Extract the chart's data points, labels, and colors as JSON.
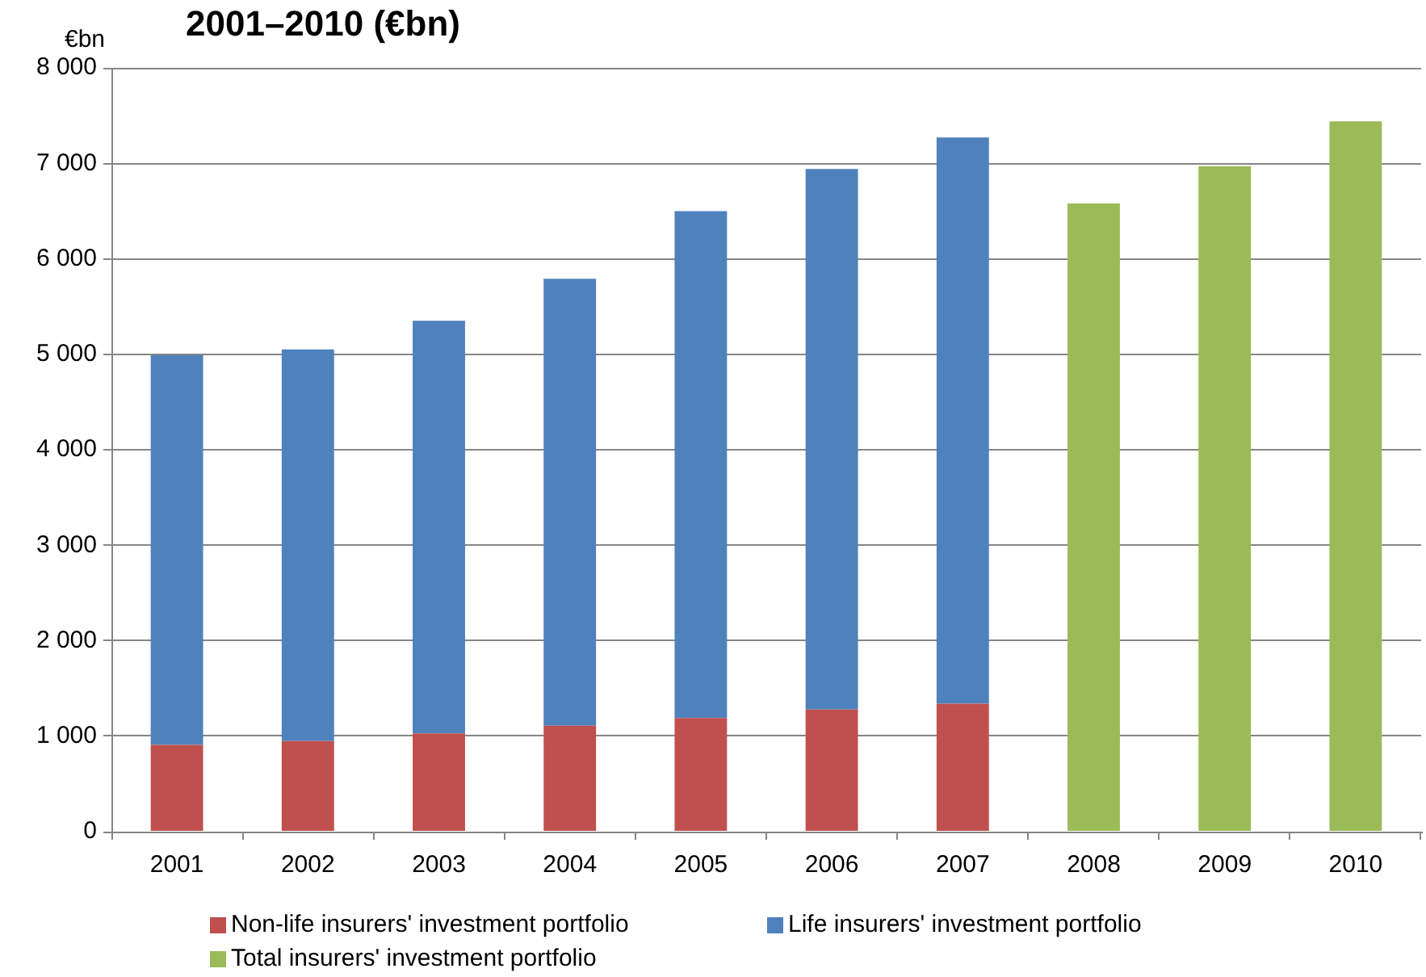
{
  "chart_data": {
    "type": "bar",
    "title": "2001–2010 (€bn)",
    "ylabel": "€bn",
    "categories": [
      "2001",
      "2002",
      "2003",
      "2004",
      "2005",
      "2006",
      "2007",
      "2008",
      "2009",
      "2010"
    ],
    "series": [
      {
        "name": "Non-life insurers' investment portfolio",
        "color": "#c0504d",
        "values": [
          910,
          950,
          1030,
          1110,
          1190,
          1280,
          1340,
          null,
          null,
          null
        ]
      },
      {
        "name": "Life insurers' investment portfolio",
        "color": "#4f81bd",
        "values": [
          4080,
          4100,
          4320,
          4680,
          5310,
          5660,
          5930,
          null,
          null,
          null
        ]
      },
      {
        "name": "Total insurers' investment portfolio",
        "color": "#9bbb59",
        "values": [
          null,
          null,
          null,
          null,
          null,
          null,
          null,
          6580,
          6970,
          7440
        ]
      }
    ],
    "stacked": true,
    "ylim": [
      0,
      8000
    ],
    "yticks": [
      0,
      {
        "value": 1000,
        "label": "1 000"
      },
      {
        "value": 2000,
        "label": "2 000"
      },
      {
        "value": 3000,
        "label": "3 000"
      },
      {
        "value": 4000,
        "label": "4 000"
      },
      {
        "value": 5000,
        "label": "5 000"
      },
      {
        "value": 6000,
        "label": "6 000"
      },
      {
        "value": 7000,
        "label": "7 000"
      },
      {
        "value": 8000,
        "label": "8 000"
      }
    ],
    "grid": "y",
    "legend": "bottom"
  }
}
